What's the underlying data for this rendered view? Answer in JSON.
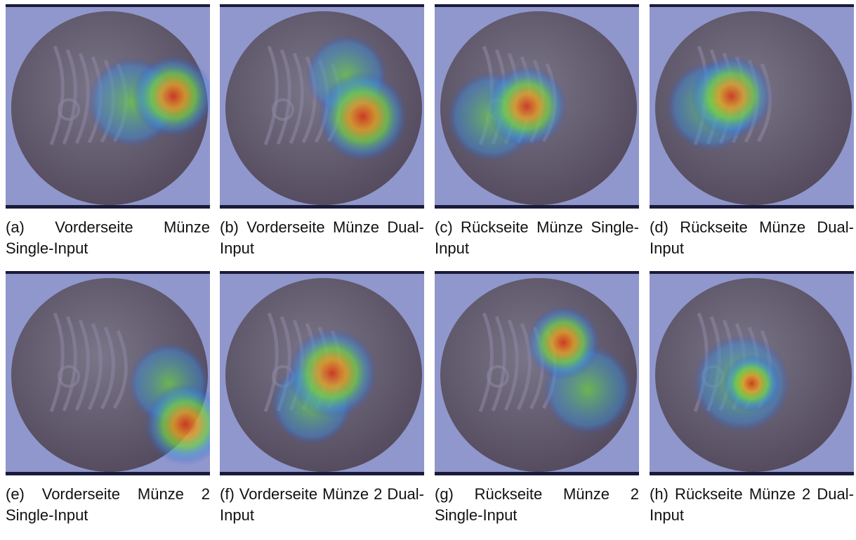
{
  "figure": {
    "panels": [
      {
        "caption": "(a) Vorderseite Münze Single-Input"
      },
      {
        "caption": "(b) Vorderseite Münze Dual-Input"
      },
      {
        "caption": "(c) Rückseite Münze Single-Input"
      },
      {
        "caption": "(d) Rückseite Münze Dual-Input"
      },
      {
        "caption": "(e) Vorderseite Münze 2 Single-Input"
      },
      {
        "caption": "(f) Vorderseite Münze 2 Dual-Input"
      },
      {
        "caption": "(g) Rückseite Münze 2 Single-Input"
      },
      {
        "caption": "(h) Rückseite Münze 2 Dual-Input"
      }
    ]
  }
}
